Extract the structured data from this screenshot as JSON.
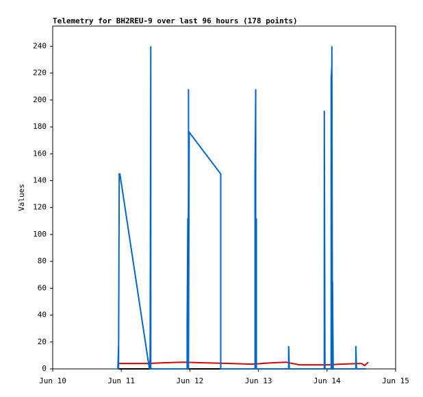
{
  "chart_data": {
    "type": "line",
    "title": "Telemetry for BH2REU-9 over last 96 hours (178 points)",
    "y_label": "Values",
    "xlim": [
      10,
      15
    ],
    "xticks": [
      {
        "value": 10,
        "label": "Jun 10"
      },
      {
        "value": 11,
        "label": "Jun 11"
      },
      {
        "value": 12,
        "label": "Jun 12"
      },
      {
        "value": 13,
        "label": "Jun 13"
      },
      {
        "value": 14,
        "label": "Jun 14"
      },
      {
        "value": 15,
        "label": "Jun 15"
      }
    ],
    "ylim": [
      0,
      255
    ],
    "yticks": [
      0,
      20,
      40,
      60,
      80,
      100,
      120,
      140,
      160,
      180,
      200,
      220,
      240
    ],
    "grid": false,
    "series": [
      {
        "color": "#000000",
        "x": [
          10.96,
          14.57
        ],
        "values": [
          0,
          0
        ]
      },
      {
        "color": "#dd0000",
        "x": [
          10.96,
          11.4,
          11.6,
          11.9,
          12.2,
          12.6,
          12.9,
          13.2,
          13.4,
          13.6,
          14.0,
          14.2,
          14.5,
          14.55,
          14.6
        ],
        "values": [
          4,
          4,
          4.5,
          5,
          4.5,
          4,
          3.5,
          4.5,
          5,
          3,
          3,
          3.5,
          4,
          2.5,
          5
        ]
      },
      {
        "color": "#0066cc",
        "x": [
          10.95,
          10.96,
          10.96,
          10.97,
          10.98,
          11.41,
          11.42,
          11.42,
          11.43,
          11.43,
          11.96,
          11.96,
          11.97,
          11.97,
          11.98,
          11.98,
          11.98,
          11.99,
          12.45,
          12.45,
          12.95,
          12.95,
          12.96,
          12.96,
          12.97,
          12.97,
          13.44,
          13.44,
          13.45,
          13.96,
          13.96,
          13.97,
          14.06,
          14.06,
          14.07,
          14.07,
          14.08,
          14.08,
          14.09,
          14.42,
          14.42,
          14.43,
          14.57
        ],
        "values": [
          0,
          17,
          0,
          145,
          145,
          0,
          8,
          0,
          240,
          0,
          0,
          32,
          112,
          0,
          145,
          208,
          0,
          176,
          145,
          0,
          0,
          145,
          208,
          0,
          112,
          0,
          0,
          17,
          0,
          0,
          192,
          0,
          0,
          216,
          225,
          240,
          0,
          65,
          0,
          0,
          17,
          0,
          0
        ]
      }
    ]
  }
}
